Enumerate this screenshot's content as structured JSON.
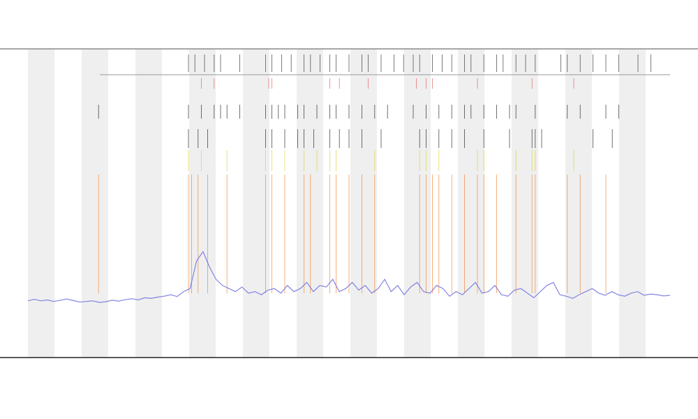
{
  "chart_data": {
    "type": "line",
    "xlim": [
      0,
      100
    ],
    "ylim": [
      0,
      100
    ],
    "series": [
      {
        "color": "#6f6fe0",
        "values": [
          18,
          18.5,
          18,
          18.3,
          17.8,
          18.2,
          18.6,
          18.1,
          17.6,
          17.8,
          18,
          17.5,
          17.7,
          18.2,
          17.9,
          18.4,
          18.7,
          18.3,
          19,
          18.8,
          19.2,
          19.5,
          20,
          19.4,
          21,
          22,
          31,
          34,
          29,
          25,
          23,
          22,
          21,
          22.5,
          20.5,
          21,
          20,
          21.5,
          22,
          20.5,
          23,
          21,
          22,
          24,
          21,
          23,
          22.5,
          25,
          21,
          22,
          24,
          21.5,
          23,
          20.5,
          22,
          25,
          21,
          23,
          20,
          22.5,
          24,
          21,
          20.5,
          23,
          22,
          19.5,
          21,
          20,
          22,
          24,
          20.5,
          21,
          23,
          20,
          19.5,
          21.5,
          22,
          20.5,
          19,
          21,
          23,
          24,
          20,
          19.5,
          18.8,
          20,
          21,
          22,
          20.5,
          19.8,
          21,
          20,
          19.5,
          20.5,
          21,
          19.8,
          20.2,
          20,
          19.6,
          19.8
        ]
      }
    ],
    "events": [
      {
        "color": "#222222",
        "x": [
          25,
          26,
          27.5,
          29,
          30,
          33,
          37,
          38,
          39.5,
          41,
          43,
          44,
          45.5,
          47,
          48,
          50,
          52,
          53,
          55,
          57,
          58.5,
          60,
          61,
          63,
          64.5,
          66,
          68,
          69,
          71,
          73,
          74,
          76,
          77.5,
          79,
          83,
          84,
          86,
          88,
          90,
          92,
          95,
          97
        ]
      },
      {
        "color": "#e05050",
        "x": [
          27,
          29,
          37.5,
          38,
          47,
          48.5,
          53,
          60.5,
          62,
          63,
          70,
          78.5,
          85
        ]
      },
      {
        "color": "#111111",
        "x": [
          11,
          25,
          27,
          29,
          30,
          31,
          33,
          37,
          38,
          39,
          40,
          42,
          43,
          45,
          47,
          48,
          50,
          52,
          54,
          56,
          60,
          62,
          64,
          66,
          68,
          69,
          71,
          73,
          75,
          76,
          79,
          84,
          86,
          90,
          92
        ]
      },
      {
        "color": "#111111",
        "x": [
          25,
          26.5,
          28,
          37,
          38,
          40,
          42,
          43,
          44.5,
          47,
          48.5,
          50,
          52,
          55,
          61,
          62,
          64,
          66,
          68,
          71,
          75,
          78.5,
          79,
          80,
          88,
          91
        ]
      },
      {
        "color": "#d8d020",
        "x": [
          25,
          27,
          31,
          37,
          38,
          40,
          43,
          45,
          47,
          48,
          54,
          61,
          62,
          64,
          70,
          71,
          76,
          78.5,
          79,
          85
        ]
      },
      {
        "color": "#f07a20",
        "x": [
          11,
          25,
          25.5,
          26.5,
          28,
          31,
          37,
          38,
          40,
          43,
          44,
          47,
          48,
          50,
          52,
          54,
          61,
          62,
          63,
          64,
          66,
          68,
          70,
          71,
          73,
          76,
          78.5,
          79,
          84,
          86,
          90
        ]
      }
    ]
  }
}
